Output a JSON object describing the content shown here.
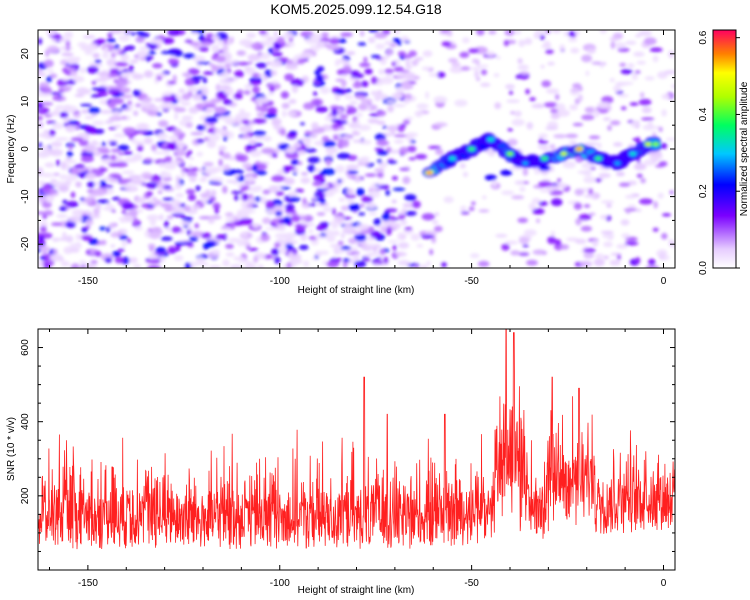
{
  "title": "KOM5.2025.099.12.54.G18",
  "chart_data": [
    {
      "type": "heatmap",
      "title": "KOM5.2025.099.12.54.G18",
      "xlabel": "Height of straight line (km)",
      "ylabel": "Frequency (Hz)",
      "xlim": [
        -163,
        3
      ],
      "ylim": [
        -25,
        25
      ],
      "xticks": [
        -150,
        -100,
        -50,
        0
      ],
      "yticks": [
        -20,
        -10,
        0,
        10,
        20
      ],
      "colorbar": {
        "label": "Normalized spectral amplitude",
        "range": [
          0.0,
          0.62
        ],
        "ticks": [
          0.0,
          0.2,
          0.4,
          0.6
        ]
      },
      "signal_track": [
        {
          "x": -61,
          "y": -5,
          "amp": 0.6
        },
        {
          "x": -55,
          "y": -2,
          "amp": 0.35
        },
        {
          "x": -50,
          "y": 0,
          "amp": 0.4
        },
        {
          "x": -45,
          "y": 2,
          "amp": 0.35
        },
        {
          "x": -40,
          "y": -1,
          "amp": 0.45
        },
        {
          "x": -36,
          "y": -3,
          "amp": 0.3
        },
        {
          "x": -31,
          "y": -2,
          "amp": 0.4
        },
        {
          "x": -26,
          "y": -1,
          "amp": 0.5
        },
        {
          "x": -22,
          "y": 0,
          "amp": 0.58
        },
        {
          "x": -17,
          "y": -2,
          "amp": 0.4
        },
        {
          "x": -12,
          "y": -3,
          "amp": 0.3
        },
        {
          "x": -8,
          "y": -1,
          "amp": 0.35
        },
        {
          "x": -4,
          "y": 1,
          "amp": 0.5
        },
        {
          "x": -2,
          "y": 1,
          "amp": 0.45
        }
      ]
    },
    {
      "type": "line",
      "xlabel": "Height of straight line (km)",
      "ylabel": "SNR (10 * v/v)",
      "xlim": [
        -163,
        3
      ],
      "ylim": [
        0,
        650
      ],
      "xticks": [
        -150,
        -100,
        -50,
        0
      ],
      "yticks": [
        200,
        400,
        600
      ],
      "color": "#ff2020",
      "baseline_mean": 130,
      "peaks": [
        {
          "x": -41,
          "y": 650
        },
        {
          "x": -39,
          "y": 640
        },
        {
          "x": -29,
          "y": 520
        },
        {
          "x": -22,
          "y": 490
        },
        {
          "x": -78,
          "y": 520
        },
        {
          "x": -72,
          "y": 420
        },
        {
          "x": -57,
          "y": 420
        }
      ]
    }
  ]
}
